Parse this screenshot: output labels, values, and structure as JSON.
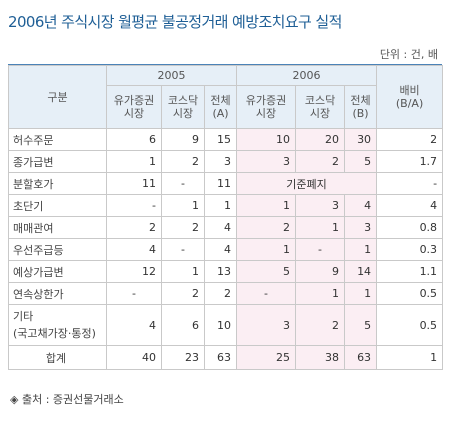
{
  "title": "2006년 주식시장 월평균 불공정거래 예방조치요구 실적",
  "unit": "단위 : 건, 배",
  "header": {
    "category": "구분",
    "year2005": "2005",
    "year2006": "2006",
    "ratio": "배비\n(B/A)",
    "kospi": "유가증권\n시장",
    "kosdaq": "코스닥\n시장",
    "total_a": "전체\n(A)",
    "total_b": "전체\n(B)"
  },
  "rows": [
    {
      "label": "허수주문",
      "c1": "6",
      "c2": "9",
      "c3": "15",
      "c4": "10",
      "c5": "20",
      "c6": "30",
      "c7": "2"
    },
    {
      "label": "종가급변",
      "c1": "1",
      "c2": "2",
      "c3": "3",
      "c4": "3",
      "c5": "2",
      "c6": "5",
      "c7": "1.7"
    },
    {
      "label": "분할호가",
      "c1": "11",
      "c2": "-",
      "c3": "11",
      "merged": "기준폐지",
      "c7": "-"
    },
    {
      "label": "초단기",
      "c1": "-",
      "c2": "1",
      "c3": "1",
      "c4": "1",
      "c5": "3",
      "c6": "4",
      "c7": "4"
    },
    {
      "label": "매매관여",
      "c1": "2",
      "c2": "2",
      "c3": "4",
      "c4": "2",
      "c5": "1",
      "c6": "3",
      "c7": "0.8"
    },
    {
      "label": "우선주급등",
      "c1": "4",
      "c2": "-",
      "c3": "4",
      "c4": "1",
      "c5": "-",
      "c6": "1",
      "c7": "0.3"
    },
    {
      "label": "예상가급변",
      "c1": "12",
      "c2": "1",
      "c3": "13",
      "c4": "5",
      "c5": "9",
      "c6": "14",
      "c7": "1.1"
    },
    {
      "label": "연속상한가",
      "c1": "-",
      "c2": "2",
      "c3": "2",
      "c4": "-",
      "c5": "1",
      "c6": "1",
      "c7": "0.5"
    },
    {
      "label": "기타\n(국고채가장·통정)",
      "c1": "4",
      "c2": "6",
      "c3": "10",
      "c4": "3",
      "c5": "2",
      "c6": "5",
      "c7": "0.5"
    }
  ],
  "total": {
    "label": "합계",
    "c1": "40",
    "c2": "23",
    "c3": "63",
    "c4": "25",
    "c5": "38",
    "c6": "63",
    "c7": "1"
  },
  "source": "◈ 출처 : 증권선물거래소"
}
